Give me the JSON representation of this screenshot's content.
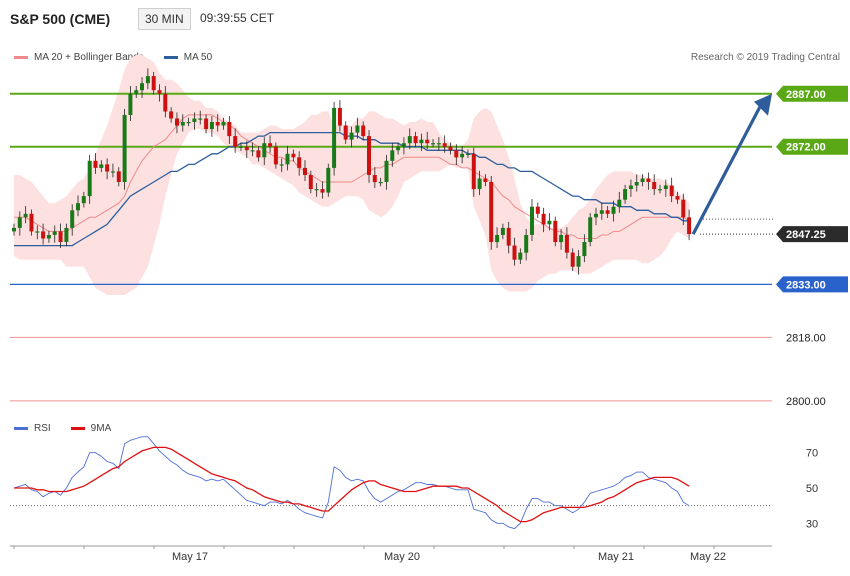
{
  "header": {
    "title": "S&P 500 (CME)",
    "timeframe": "30 MIN",
    "clock": "09:39:55 CET"
  },
  "legend": {
    "bollinger_label": "MA 20 + Bollinger Bands",
    "ma50_label": "MA 50",
    "copyright": "Research © 2019 Trading Central"
  },
  "rsi_legend": {
    "rsi_label": "RSI",
    "ma9_label": "9MA"
  },
  "colors": {
    "candle_up": "#1a7a1a",
    "candle_down": "#cc1111",
    "bollinger": "#f08a8a",
    "bollinger_fill": "#fde0e0",
    "ma50": "#2d5f9e",
    "resistance": "#5aa815",
    "support": "#2a62cc",
    "target_line": "#f09090",
    "arrow": "#2f5d9a",
    "rsi": "#4c6fd6",
    "rsi_ma": "#e01010"
  },
  "chart_data": [
    {
      "type": "candlestick",
      "title": "S&P 500 (CME)",
      "ylim": [
        2796,
        2896
      ],
      "x_ticks": [
        "May 17",
        "May 20",
        "May 21",
        "May 22"
      ],
      "levels": [
        {
          "label": "2887.00",
          "value": 2887.0,
          "role": "resistance"
        },
        {
          "label": "2872.00",
          "value": 2872.0,
          "role": "resistance"
        },
        {
          "label": "2847.25",
          "value": 2847.25,
          "role": "last"
        },
        {
          "label": "2833.00",
          "value": 2833.0,
          "role": "support"
        },
        {
          "label": "2818.00",
          "value": 2818.0,
          "role": "target"
        },
        {
          "label": "2800.00",
          "value": 2800.0,
          "role": "target"
        }
      ],
      "dotted_level": 2851.5,
      "closes": [
        2849,
        2852,
        2853,
        2848,
        2848,
        2846,
        2847,
        2848,
        2845,
        2849,
        2854,
        2856,
        2858,
        2868,
        2866,
        2867,
        2865,
        2865,
        2862,
        2881,
        2887,
        2888,
        2890,
        2892,
        2888,
        2887,
        2882,
        2880,
        2878,
        2879,
        2879,
        2880,
        2880,
        2877,
        2879,
        2878,
        2879,
        2875,
        2872,
        2872,
        2871,
        2871,
        2869,
        2873,
        2872,
        2867,
        2867,
        2870,
        2869,
        2866,
        2864,
        2860,
        2860,
        2859,
        2866,
        2883,
        2878,
        2874,
        2876,
        2878,
        2875,
        2864,
        2862,
        2862,
        2868,
        2871,
        2872,
        2873,
        2875,
        2873,
        2874,
        2873,
        2873,
        2873,
        2872,
        2871,
        2869,
        2870,
        2870,
        2860,
        2863,
        2862,
        2845,
        2847,
        2849,
        2844,
        2840,
        2842,
        2847,
        2855,
        2853,
        2850,
        2851,
        2845,
        2847,
        2842,
        2838,
        2841,
        2845,
        2852,
        2853,
        2854,
        2853,
        2855,
        2857,
        2860,
        2861,
        2862,
        2863,
        2862,
        2860,
        2860,
        2861,
        2858,
        2857,
        2852,
        2847.25
      ],
      "bollinger_upper": [
        2864,
        2864,
        2863,
        2862,
        2860,
        2858,
        2856,
        2856,
        2857,
        2858,
        2860,
        2862,
        2863,
        2866,
        2870,
        2874,
        2878,
        2883,
        2888,
        2894,
        2897,
        2898,
        2898,
        2897,
        2896,
        2893,
        2891,
        2891,
        2890,
        2888,
        2886,
        2885,
        2885,
        2883,
        2883,
        2882,
        2880,
        2879,
        2878,
        2876,
        2876,
        2876,
        2876,
        2877,
        2878,
        2878,
        2877,
        2877,
        2877,
        2878,
        2879,
        2881,
        2881,
        2882,
        2882,
        2878,
        2878,
        2878,
        2878,
        2880,
        2880,
        2882,
        2882,
        2881,
        2880,
        2880,
        2879,
        2878,
        2879,
        2879,
        2880,
        2879,
        2879,
        2876,
        2874,
        2873,
        2872,
        2872,
        2874,
        2880,
        2882,
        2883,
        2882,
        2878,
        2874,
        2869,
        2863,
        2856,
        2852,
        2850,
        2850,
        2850,
        2849,
        2849,
        2849,
        2850,
        2852,
        2854,
        2855,
        2857,
        2860,
        2862,
        2864,
        2865,
        2865,
        2865,
        2865,
        2864,
        2864,
        2863,
        2863,
        2863,
        2862,
        2861,
        2859,
        2858,
        2856
      ],
      "bollinger_lower": [
        2841,
        2840,
        2840,
        2840,
        2840,
        2840,
        2840,
        2840,
        2840,
        2838,
        2838,
        2838,
        2838,
        2835,
        2832,
        2831,
        2830,
        2830,
        2830,
        2830,
        2831,
        2832,
        2835,
        2838,
        2844,
        2850,
        2858,
        2864,
        2870,
        2873,
        2876,
        2877,
        2877,
        2876,
        2876,
        2875,
        2873,
        2872,
        2871,
        2870,
        2869,
        2867,
        2867,
        2866,
        2865,
        2864,
        2863,
        2862,
        2861,
        2859,
        2858,
        2857,
        2856,
        2855,
        2855,
        2856,
        2857,
        2858,
        2858,
        2858,
        2857,
        2854,
        2853,
        2852,
        2853,
        2855,
        2858,
        2862,
        2863,
        2864,
        2865,
        2865,
        2865,
        2865,
        2866,
        2867,
        2866,
        2866,
        2866,
        2855,
        2851,
        2847,
        2837,
        2834,
        2832,
        2831,
        2831,
        2831,
        2831,
        2832,
        2834,
        2835,
        2836,
        2836,
        2837,
        2837,
        2837,
        2836,
        2836,
        2836,
        2837,
        2838,
        2839,
        2840,
        2840,
        2840,
        2840,
        2840,
        2839,
        2839,
        2840,
        2841,
        2843,
        2846,
        2848,
        2847,
        2846
      ],
      "ma50": [
        2844,
        2844,
        2844,
        2844,
        2844,
        2844,
        2844,
        2844,
        2844,
        2844,
        2844,
        2845,
        2846,
        2847,
        2848,
        2849,
        2850,
        2852,
        2854,
        2856,
        2858,
        2859,
        2860,
        2861,
        2862,
        2863,
        2864,
        2865,
        2865,
        2866,
        2867,
        2867,
        2868,
        2869,
        2870,
        2870,
        2871,
        2872,
        2872,
        2873,
        2873,
        2874,
        2875,
        2875,
        2876,
        2876,
        2876,
        2876,
        2876,
        2876,
        2876,
        2876,
        2876,
        2876,
        2876,
        2876,
        2876,
        2875,
        2875,
        2875,
        2874,
        2874,
        2874,
        2873,
        2873,
        2873,
        2873,
        2872,
        2872,
        2872,
        2872,
        2871,
        2871,
        2871,
        2871,
        2871,
        2871,
        2871,
        2870,
        2870,
        2869,
        2869,
        2868,
        2867,
        2867,
        2866,
        2866,
        2865,
        2865,
        2865,
        2864,
        2863,
        2862,
        2861,
        2860,
        2859,
        2858,
        2858,
        2857,
        2857,
        2857,
        2856,
        2856,
        2856,
        2855,
        2855,
        2855,
        2854,
        2854,
        2854,
        2853,
        2853,
        2853,
        2852,
        2852,
        2851,
        2851
      ],
      "ma20": [
        2852,
        2852,
        2852,
        2851,
        2850,
        2849,
        2848,
        2848,
        2848,
        2848,
        2849,
        2850,
        2851,
        2852,
        2852,
        2853,
        2854,
        2855,
        2856,
        2858,
        2862,
        2865,
        2868,
        2870,
        2872,
        2873,
        2874,
        2876,
        2878,
        2880,
        2881,
        2881,
        2881,
        2881,
        2881,
        2880,
        2879,
        2878,
        2877,
        2875,
        2874,
        2873,
        2872,
        2871,
        2870,
        2869,
        2869,
        2868,
        2868,
        2866,
        2865,
        2864,
        2863,
        2862,
        2862,
        2862,
        2862,
        2862,
        2862,
        2863,
        2864,
        2865,
        2866,
        2866,
        2867,
        2867,
        2868,
        2869,
        2869,
        2869,
        2869,
        2869,
        2869,
        2869,
        2868,
        2867,
        2867,
        2866,
        2866,
        2865,
        2864,
        2863,
        2862,
        2860,
        2858,
        2857,
        2855,
        2854,
        2853,
        2852,
        2851,
        2850,
        2849,
        2848,
        2848,
        2847,
        2847,
        2846,
        2846,
        2846,
        2846,
        2847,
        2847,
        2848,
        2848,
        2849,
        2850,
        2851,
        2852,
        2852,
        2852,
        2852,
        2852,
        2852,
        2852,
        2852,
        2851
      ],
      "target_arrow": {
        "from": 2847.25,
        "to": 2887.0
      }
    },
    {
      "type": "line",
      "title": "RSI",
      "ylim": [
        20,
        80
      ],
      "y_ticks": [
        "70",
        "50",
        "30"
      ],
      "dotted_level": 40,
      "series": [
        {
          "name": "RSI",
          "values": [
            50,
            51,
            52,
            49,
            48,
            45,
            47,
            48,
            46,
            50,
            56,
            59,
            62,
            70,
            70,
            68,
            65,
            64,
            61,
            75,
            77,
            78,
            79,
            79,
            75,
            71,
            68,
            65,
            63,
            60,
            58,
            57,
            56,
            54,
            55,
            54,
            55,
            52,
            49,
            46,
            43,
            42,
            41,
            40,
            42,
            42,
            41,
            43,
            41,
            38,
            36,
            35,
            34,
            33,
            42,
            62,
            60,
            56,
            54,
            55,
            54,
            48,
            44,
            42,
            44,
            46,
            48,
            49,
            51,
            53,
            53,
            52,
            52,
            51,
            51,
            50,
            49,
            49,
            49,
            38,
            37,
            36,
            32,
            30,
            30,
            28,
            27,
            30,
            38,
            44,
            44,
            42,
            42,
            40,
            40,
            38,
            36,
            38,
            42,
            47,
            48,
            49,
            50,
            51,
            53,
            56,
            57,
            59,
            59,
            56,
            55,
            54,
            53,
            50,
            48,
            42,
            40
          ]
        },
        {
          "name": "9MA",
          "values": [
            50,
            50,
            50,
            50,
            49,
            49,
            48,
            48,
            48,
            48,
            49,
            50,
            51,
            53,
            55,
            57,
            59,
            61,
            62,
            65,
            67,
            69,
            71,
            72,
            73,
            73,
            73,
            72,
            70,
            68,
            66,
            64,
            62,
            60,
            58,
            57,
            56,
            55,
            54,
            52,
            50,
            49,
            47,
            45,
            44,
            43,
            42,
            42,
            41,
            41,
            40,
            39,
            38,
            37,
            37,
            40,
            43,
            46,
            49,
            51,
            53,
            54,
            54,
            52,
            51,
            50,
            49,
            48,
            48,
            48,
            49,
            50,
            51,
            51,
            51,
            51,
            51,
            50,
            50,
            48,
            46,
            44,
            42,
            40,
            37,
            35,
            33,
            31,
            31,
            32,
            34,
            36,
            37,
            38,
            39,
            39,
            39,
            39,
            39,
            40,
            41,
            42,
            44,
            45,
            47,
            49,
            51,
            53,
            54,
            55,
            56,
            56,
            56,
            56,
            55,
            53,
            51
          ]
        }
      ]
    }
  ]
}
